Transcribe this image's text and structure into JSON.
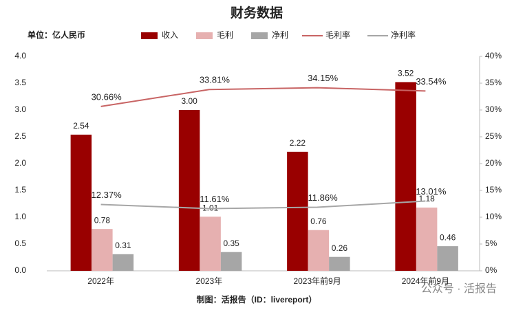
{
  "chart_data": {
    "type": "bar",
    "title": "财务数据",
    "unit_label": "单位：亿人民币",
    "source": "制图：活报告（ID：livereport）",
    "watermark": "公众号 · 活报告",
    "categories": [
      "2022年",
      "2023年",
      "2023年前9月",
      "2024年前9月"
    ],
    "series": [
      {
        "name": "收入",
        "color": "#990000",
        "type": "bar",
        "values": [
          2.54,
          3.0,
          2.22,
          3.52
        ],
        "value_labels": [
          "2.54",
          "3.00",
          "2.22",
          "3.52"
        ]
      },
      {
        "name": "毛利",
        "color": "#e6b0b0",
        "type": "bar",
        "values": [
          0.78,
          1.01,
          0.76,
          1.18
        ],
        "value_labels": [
          "0.78",
          "1.01",
          "0.76",
          "1.18"
        ]
      },
      {
        "name": "净利",
        "color": "#a6a6a6",
        "type": "bar",
        "values": [
          0.31,
          0.35,
          0.26,
          0.46
        ],
        "value_labels": [
          "0.31",
          "0.35",
          "0.26",
          "0.46"
        ]
      },
      {
        "name": "毛利率",
        "color": "#c86464",
        "type": "line",
        "axis": "y2",
        "values": [
          30.66,
          33.81,
          34.15,
          33.54
        ],
        "value_labels": [
          "30.66%",
          "33.81%",
          "34.15%",
          "33.54%"
        ]
      },
      {
        "name": "净利率",
        "color": "#a6a6a6",
        "type": "line",
        "axis": "y2",
        "values": [
          12.37,
          11.61,
          11.86,
          13.01
        ],
        "value_labels": [
          "12.37%",
          "11.61%",
          "11.86%",
          "13.01%"
        ]
      }
    ],
    "ylim": [
      0,
      4
    ],
    "yticks": [
      {
        "value": 0,
        "label": "0.0"
      },
      {
        "value": 0.5,
        "label": "0.5"
      },
      {
        "value": 1,
        "label": "1.0"
      },
      {
        "value": 1.5,
        "label": "1.5"
      },
      {
        "value": 2,
        "label": "2.0"
      },
      {
        "value": 2.5,
        "label": "2.5"
      },
      {
        "value": 3,
        "label": "3.0"
      },
      {
        "value": 3.5,
        "label": "3.5"
      },
      {
        "value": 4,
        "label": "4.0"
      }
    ],
    "y2lim": [
      0,
      40
    ],
    "y2ticks": [
      {
        "value": 0,
        "label": "0%"
      },
      {
        "value": 5,
        "label": "5%"
      },
      {
        "value": 10,
        "label": "10%"
      },
      {
        "value": 15,
        "label": "15%"
      },
      {
        "value": 20,
        "label": "20%"
      },
      {
        "value": 25,
        "label": "25%"
      },
      {
        "value": 30,
        "label": "30%"
      },
      {
        "value": 35,
        "label": "35%"
      },
      {
        "value": 40,
        "label": "40%"
      }
    ],
    "grid": false
  }
}
